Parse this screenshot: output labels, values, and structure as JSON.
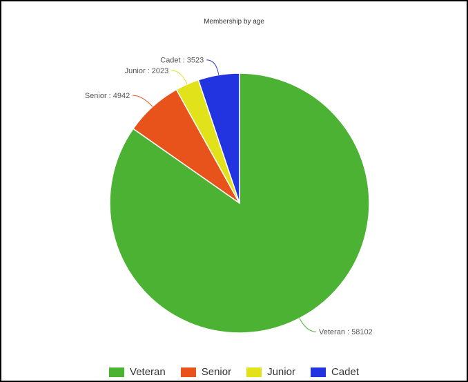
{
  "chart_data": {
    "type": "pie",
    "title": "Membership by age",
    "slices": [
      {
        "label": "Veteran",
        "value": 58102,
        "color": "#4cb233",
        "data_label": "Veteran : 58102"
      },
      {
        "label": "Senior",
        "value": 4942,
        "color": "#e8531c",
        "data_label": "Senior : 4942"
      },
      {
        "label": "Junior",
        "value": 2023,
        "color": "#e2e21a",
        "data_label": "Junior : 2023"
      },
      {
        "label": "Cadet",
        "value": 3523,
        "color": "#2233e0",
        "data_label": "Cadet : 3523"
      }
    ],
    "legend_placement": "bottom-center"
  }
}
